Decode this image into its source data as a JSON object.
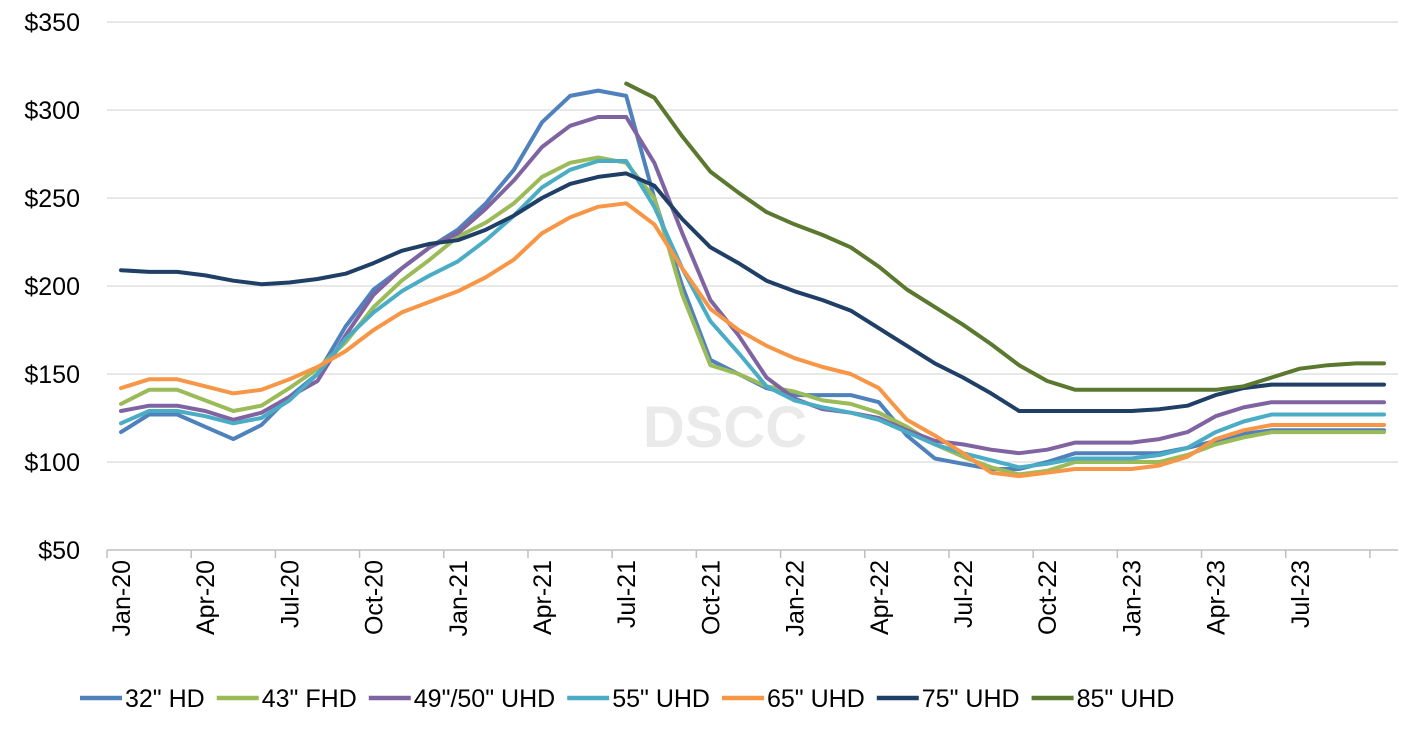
{
  "chart_data": {
    "type": "line",
    "title": "",
    "xlabel": "",
    "ylabel": "",
    "ylim": [
      50,
      350
    ],
    "y_ticks": [
      "$50",
      "$100",
      "$150",
      "$200",
      "$250",
      "$300",
      "$350"
    ],
    "y_tick_values": [
      50,
      100,
      150,
      200,
      250,
      300,
      350
    ],
    "x_tick_labels": [
      "Jan-20",
      "Apr-20",
      "Jul-20",
      "Oct-20",
      "Jan-21",
      "Apr-21",
      "Jul-21",
      "Oct-21",
      "Jan-22",
      "Apr-22",
      "Jul-22",
      "Oct-22",
      "Jan-23",
      "Apr-23",
      "Jul-23"
    ],
    "months": 46,
    "watermark": "DSCC",
    "series": [
      {
        "name": "32\" HD",
        "color": "#4f81bd",
        "start": 0,
        "values": [
          117,
          127,
          127,
          120,
          113,
          121,
          137,
          150,
          177,
          198,
          210,
          222,
          232,
          247,
          266,
          293,
          308,
          311,
          308,
          250,
          200,
          158,
          150,
          142,
          138,
          138,
          138,
          134,
          115,
          102,
          99,
          96,
          96,
          100,
          105,
          105,
          105,
          105,
          108,
          112,
          116,
          118,
          118,
          118,
          118,
          118
        ]
      },
      {
        "name": "43\" FHD",
        "color": "#9bbb59",
        "start": 0,
        "values": [
          133,
          141,
          141,
          135,
          129,
          132,
          142,
          153,
          168,
          188,
          203,
          215,
          228,
          236,
          247,
          262,
          270,
          273,
          270,
          250,
          195,
          155,
          150,
          143,
          140,
          135,
          133,
          128,
          120,
          110,
          103,
          97,
          93,
          95,
          100,
          100,
          100,
          100,
          104,
          110,
          114,
          117,
          117,
          117,
          117,
          117
        ]
      },
      {
        "name": "49\"/50\" UHD",
        "color": "#8064a2",
        "start": 0,
        "values": [
          129,
          132,
          132,
          129,
          124,
          128,
          137,
          146,
          172,
          195,
          210,
          222,
          230,
          244,
          260,
          279,
          291,
          296,
          296,
          270,
          230,
          192,
          172,
          148,
          136,
          130,
          128,
          125,
          118,
          112,
          110,
          107,
          105,
          107,
          111,
          111,
          111,
          113,
          117,
          126,
          131,
          134,
          134,
          134,
          134,
          134
        ]
      },
      {
        "name": "55\" UHD",
        "color": "#4bacc6",
        "start": 0,
        "values": [
          122,
          129,
          129,
          126,
          122,
          125,
          135,
          150,
          170,
          185,
          197,
          206,
          214,
          226,
          240,
          256,
          266,
          271,
          271,
          245,
          210,
          180,
          162,
          143,
          135,
          131,
          128,
          124,
          117,
          110,
          105,
          101,
          97,
          99,
          102,
          102,
          102,
          104,
          108,
          117,
          123,
          127,
          127,
          127,
          127,
          127
        ]
      },
      {
        "name": "65\" UHD",
        "color": "#f79646",
        "start": 0,
        "values": [
          142,
          147,
          147,
          143,
          139,
          141,
          147,
          154,
          163,
          175,
          185,
          191,
          197,
          205,
          215,
          230,
          239,
          245,
          247,
          235,
          210,
          187,
          175,
          166,
          159,
          154,
          150,
          142,
          124,
          115,
          105,
          94,
          92,
          94,
          96,
          96,
          96,
          98,
          103,
          113,
          118,
          121,
          121,
          121,
          121,
          121
        ]
      },
      {
        "name": "75\" UHD",
        "color": "#1f3f66",
        "start": 0,
        "values": [
          209,
          208,
          208,
          206,
          203,
          201,
          202,
          204,
          207,
          213,
          220,
          224,
          226,
          232,
          240,
          250,
          258,
          262,
          264,
          257,
          238,
          222,
          213,
          203,
          197,
          192,
          186,
          176,
          166,
          156,
          148,
          139,
          129,
          129,
          129,
          129,
          129,
          130,
          132,
          138,
          142,
          144,
          144,
          144,
          144,
          144
        ]
      },
      {
        "name": "85\" UHD",
        "color": "#5a782e",
        "start": 18,
        "values": [
          315,
          307,
          285,
          265,
          253,
          242,
          235,
          229,
          222,
          211,
          198,
          188,
          178,
          167,
          155,
          146,
          141,
          141,
          141,
          141,
          141,
          141,
          143,
          148,
          153,
          155,
          156,
          156
        ]
      }
    ]
  }
}
